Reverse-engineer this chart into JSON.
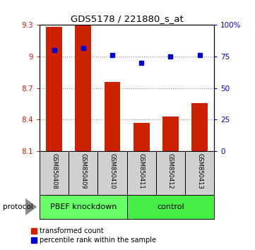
{
  "title": "GDS5178 / 221880_s_at",
  "samples": [
    "GSM850408",
    "GSM850409",
    "GSM850410",
    "GSM850411",
    "GSM850412",
    "GSM850413"
  ],
  "bar_values": [
    9.28,
    9.3,
    8.76,
    8.37,
    8.43,
    8.56
  ],
  "bar_baseline": 8.1,
  "bar_color": "#cc2200",
  "percentile_values": [
    80,
    82,
    76,
    70,
    75,
    76
  ],
  "dot_color": "#0000cc",
  "ylim_left": [
    8.1,
    9.3
  ],
  "ylim_right": [
    0,
    100
  ],
  "yticks_left": [
    8.1,
    8.4,
    8.7,
    9.0,
    9.3
  ],
  "yticks_right": [
    0,
    25,
    50,
    75,
    100
  ],
  "ytick_labels_left": [
    "8.1",
    "8.4",
    "8.7",
    "9",
    "9.3"
  ],
  "ytick_labels_right": [
    "0",
    "25",
    "50",
    "75",
    "100%"
  ],
  "groups": [
    {
      "label": "PBEF knockdown",
      "indices": [
        0,
        1,
        2
      ],
      "color": "#66ff66"
    },
    {
      "label": "control",
      "indices": [
        3,
        4,
        5
      ],
      "color": "#44ee44"
    }
  ],
  "protocol_label": "protocol",
  "legend_items": [
    {
      "color": "#cc2200",
      "label": "transformed count"
    },
    {
      "color": "#0000cc",
      "label": "percentile rank within the sample"
    }
  ],
  "grid_color": "#888888",
  "bar_width": 0.55,
  "figsize": [
    3.61,
    3.54
  ],
  "dpi": 100
}
